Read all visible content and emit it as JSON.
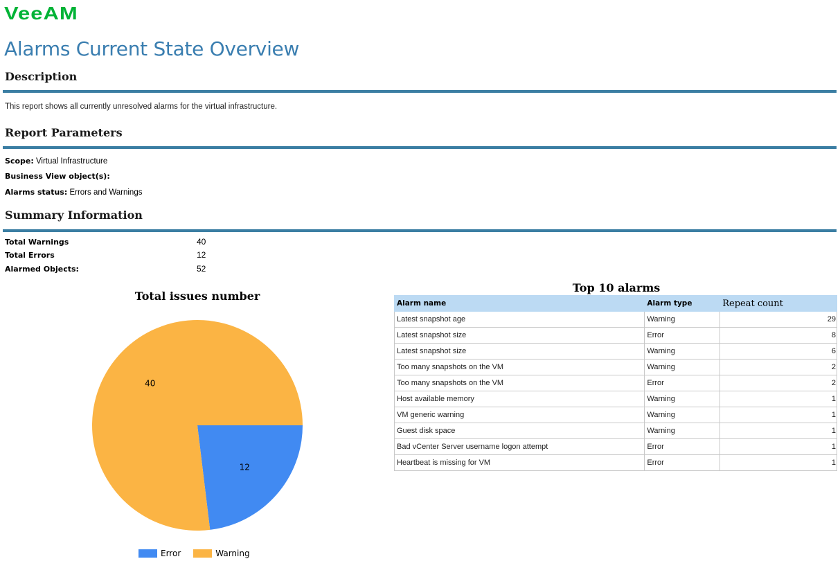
{
  "logo_text": "VeeAM",
  "title": "Alarms Current State Overview",
  "description": {
    "heading": "Description",
    "text": "This report shows all currently unresolved alarms for the virtual infrastructure."
  },
  "parameters": {
    "heading": "Report Parameters",
    "scope_label": "Scope:",
    "scope_value": "Virtual Infrastructure",
    "business_view_label": "Business View object(s):",
    "business_view_value": "",
    "alarms_status_label": "Alarms status:",
    "alarms_status_value": "Errors and Warnings"
  },
  "summary": {
    "heading": "Summary Information",
    "rows": [
      {
        "label": "Total Warnings",
        "value": "40"
      },
      {
        "label": "Total Errors",
        "value": "12"
      },
      {
        "label": "Alarmed Objects:",
        "value": "52"
      }
    ]
  },
  "colors": {
    "brand": "#00b336",
    "title": "#3a7eb0",
    "rule": "#3b7ea3",
    "error": "#418af2",
    "warning": "#fbb444",
    "table_header": "#bcdaf3"
  },
  "chart_data": {
    "type": "pie",
    "title": "Total issues number",
    "slices": [
      {
        "name": "Error",
        "value": 12,
        "color": "#418af2"
      },
      {
        "name": "Warning",
        "value": 40,
        "color": "#fbb444"
      }
    ],
    "legend": "bottom"
  },
  "top_alarms": {
    "title": "Top 10 alarms",
    "columns": [
      "Alarm name",
      "Alarm type",
      "Repeat count"
    ],
    "rows": [
      {
        "name": "Latest snapshot age",
        "type": "Warning",
        "count": "29"
      },
      {
        "name": "Latest snapshot size",
        "type": "Error",
        "count": "8"
      },
      {
        "name": "Latest snapshot size",
        "type": "Warning",
        "count": "6"
      },
      {
        "name": "Too many snapshots on the VM",
        "type": "Warning",
        "count": "2"
      },
      {
        "name": "Too many snapshots on the VM",
        "type": "Error",
        "count": "2"
      },
      {
        "name": "Host available memory",
        "type": "Warning",
        "count": "1"
      },
      {
        "name": "VM generic warning",
        "type": "Warning",
        "count": "1"
      },
      {
        "name": "Guest disk space",
        "type": "Warning",
        "count": "1"
      },
      {
        "name": "Bad vCenter Server username logon attempt",
        "type": "Error",
        "count": "1"
      },
      {
        "name": "Heartbeat is missing for VM",
        "type": "Error",
        "count": "1"
      }
    ]
  }
}
